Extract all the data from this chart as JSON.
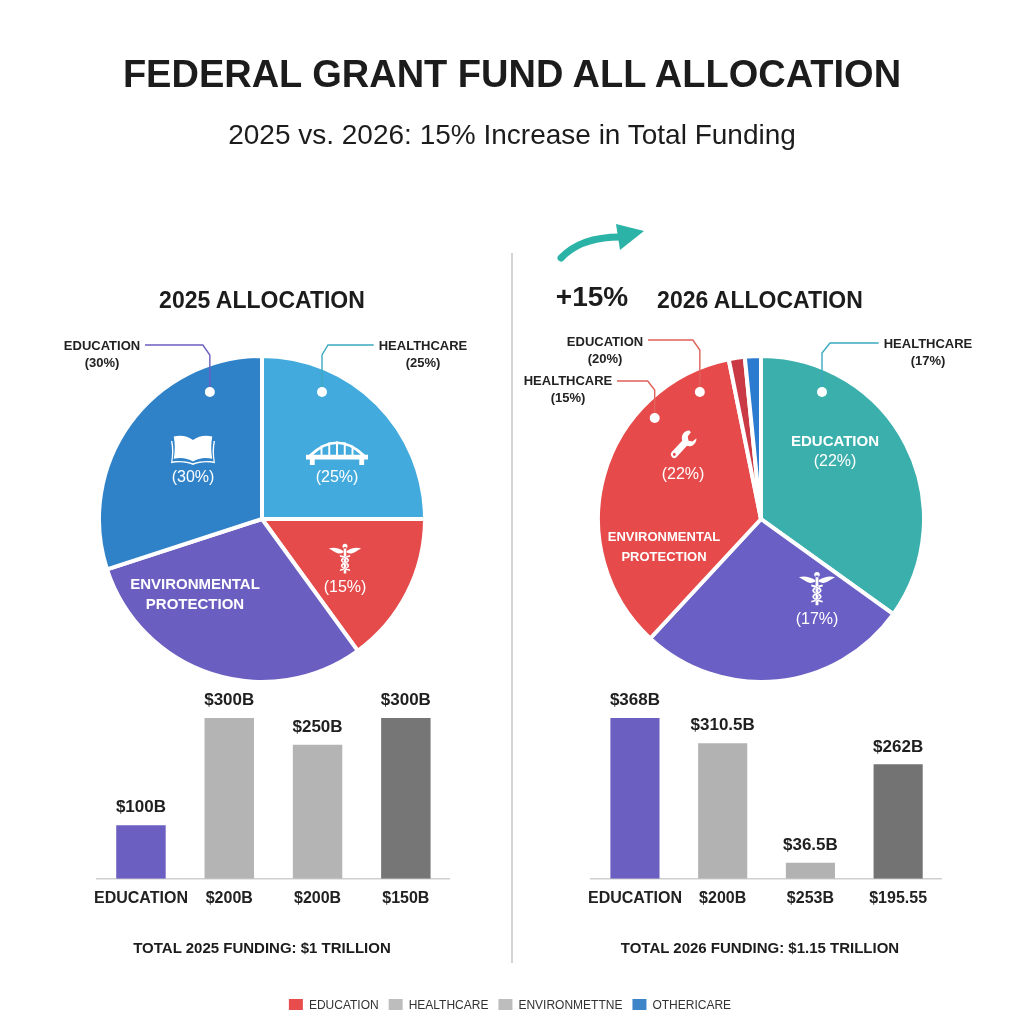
{
  "chart_data": [
    {
      "type": "other",
      "title": "FEDERAL GRANT FUND ALL ALLOCATION",
      "subtitle": "2025 vs. 2026: 15% Increase in Total Funding"
    },
    {
      "type": "pie",
      "title": "2025 ALLOCATION",
      "categories": [
        "HEALTHCARE",
        null,
        "ENVIRONMENTAL PROTECTION",
        "EDUCATION"
      ],
      "values": [
        25,
        15,
        30,
        30
      ],
      "colors": [
        "#43aadd",
        "#e54b4b",
        "#6a5fc1",
        "#2f82c8"
      ],
      "value_labels": [
        "(25%)",
        "(15%)",
        null,
        "(30%)"
      ]
    },
    {
      "type": "bar",
      "categories": [
        "EDUCATION",
        "$200B",
        "$200B",
        "$150B"
      ],
      "values": [
        100,
        300,
        250,
        300
      ],
      "colors": [
        "#6b5fc2",
        "#b4b4b4",
        "#b4b4b4",
        "#767676"
      ],
      "value_labels": [
        "$100B",
        "$300B",
        "$250B",
        "$300B"
      ],
      "tick_labels": "x",
      "annotations": [
        "TOTAL 2025 FUNDING: $1 TRILLION"
      ]
    },
    {
      "type": "pie",
      "title": "2026 ALLOCATION",
      "categories": [
        "EDUCATION",
        null,
        "ENVIRONMENTAL PROTECTION",
        null,
        null
      ],
      "values": [
        22,
        17,
        22,
        1,
        1
      ],
      "colors": [
        "#3aafac",
        "#6a5fc4",
        "#e64a4a",
        "#c93a45",
        "#2b7bd0"
      ],
      "value_labels": [
        "(22%)",
        "(17%)",
        "(22%)",
        null,
        null
      ],
      "annotations": [
        "EDUCATION (20%)",
        "HEALTHCARE (15%)",
        "HEALTHCARE (17%)",
        "+15%"
      ]
    },
    {
      "type": "bar",
      "categories": [
        "EDUCATION",
        "$200B",
        "$253B",
        "$195.55"
      ],
      "values": [
        368,
        310.5,
        36.5,
        262
      ],
      "colors": [
        "#6b5fc2",
        "#b2b2b2",
        "#b2b2b2",
        "#737373"
      ],
      "value_labels": [
        "$368B",
        "$310.5B",
        "$36.5B",
        "$262B"
      ],
      "tick_labels": "x",
      "annotations": [
        "TOTAL 2026 FUNDING: $1.15 TRILLION"
      ]
    },
    {
      "type": "other",
      "series": [
        {
          "name": "EDUCATION",
          "color": "#e84c4c"
        },
        {
          "name": "HEALTHCARE",
          "color": "#bdbdbd"
        },
        {
          "name": "ENVIRONMETTNE",
          "color": "#bdbdbd"
        },
        {
          "name": "OTHERICARE",
          "color": "#3d84c9"
        }
      ],
      "legend": "bottom"
    }
  ]
}
